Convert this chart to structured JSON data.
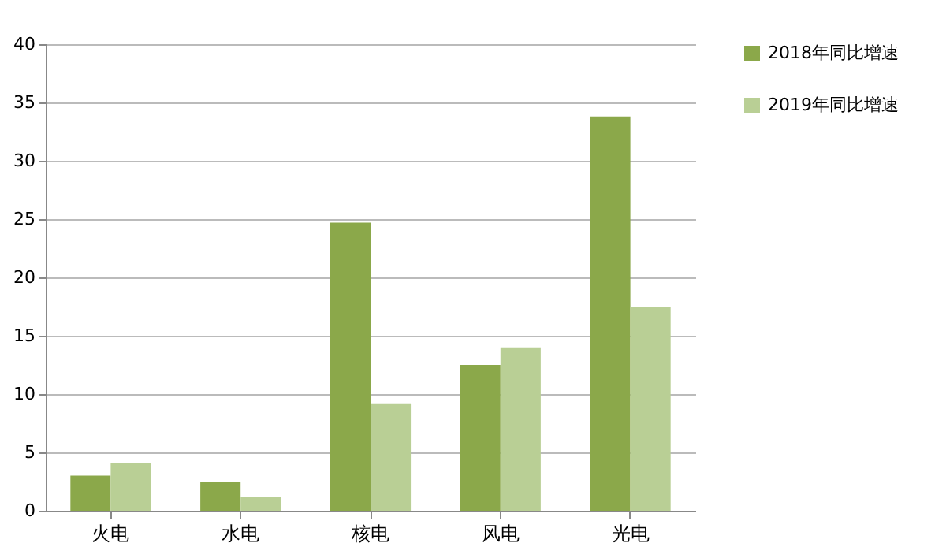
{
  "chart_data": {
    "type": "bar",
    "categories": [
      "火电",
      "水电",
      "核电",
      "风电",
      "光电"
    ],
    "series": [
      {
        "name": "2018年同比增速",
        "color": "#8ba84a",
        "values": [
          3.0,
          2.5,
          24.7,
          12.5,
          33.8
        ]
      },
      {
        "name": "2019年同比增速",
        "color": "#b9cf95",
        "values": [
          4.1,
          1.2,
          9.2,
          14.0,
          17.5
        ]
      }
    ],
    "ylim": [
      0,
      40
    ],
    "yticks": [
      0,
      5,
      10,
      15,
      20,
      25,
      30,
      35,
      40
    ],
    "grid": "y",
    "legend": "right"
  }
}
